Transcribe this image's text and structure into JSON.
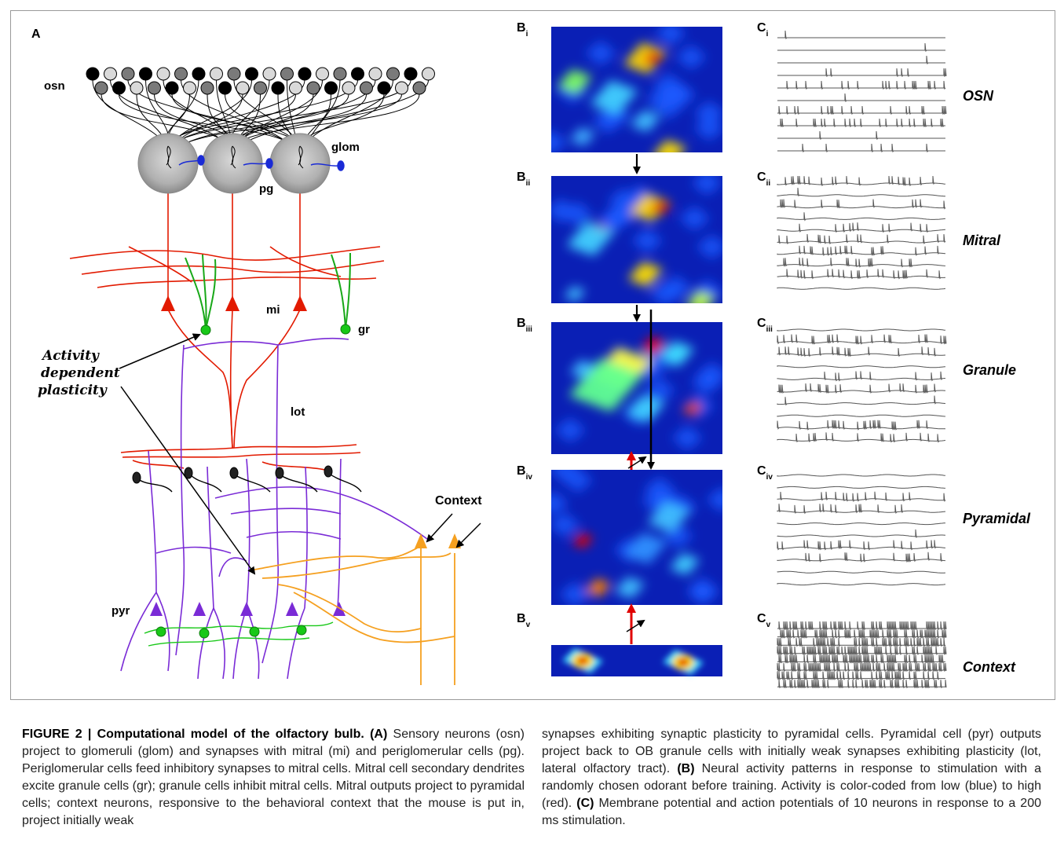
{
  "panel_a": {
    "letter": "A",
    "osn": "osn",
    "glom": "glom",
    "pg": "pg",
    "mi": "mi",
    "gr": "gr",
    "lot": "lot",
    "pyr": "pyr",
    "context": "Context",
    "plasticity": [
      "Activity",
      "dependent",
      "plasticity"
    ]
  },
  "panel_b": {
    "letter": "B",
    "subs": [
      "i",
      "ii",
      "iii",
      "iv",
      "v"
    ]
  },
  "panel_c": {
    "letter": "C",
    "subs": [
      "i",
      "ii",
      "iii",
      "iv",
      "v"
    ],
    "rows": [
      "OSN",
      "Mitral",
      "Granule",
      "Pyramidal",
      "Context"
    ]
  },
  "caption": {
    "figure_label": "FIGURE 2 | Computational model of the olfactory bulb.",
    "a_tag": "(A)",
    "a_text": " Sensory neurons (osn) project to glomeruli (glom) and synapses with mitral (mi) and periglomerular cells (pg). Periglomerular cells feed inhibitory synapses to mitral cells. Mitral cell secondary dendrites excite granule cells (gr); granule cells inhibit mitral cells. Mitral outputs project to pyramidal cells; context neurons, responsive to the behavioral context that the mouse is put in, project initially weak",
    "right_text_1": "synapses exhibiting synaptic plasticity to pyramidal cells. Pyramidal cell (pyr) outputs project back to OB granule cells with initially weak synapses exhibiting plasticity (lot, lateral olfactory tract). ",
    "b_tag": "(B)",
    "b_text": " Neural activity patterns in response to stimulation with a randomly chosen odorant before training. Activity is color-coded from low (blue) to high (red). ",
    "c_tag": "(C)",
    "c_text": " Membrane potential and action potentials of 10 neurons in response to a 200 ms stimulation."
  }
}
